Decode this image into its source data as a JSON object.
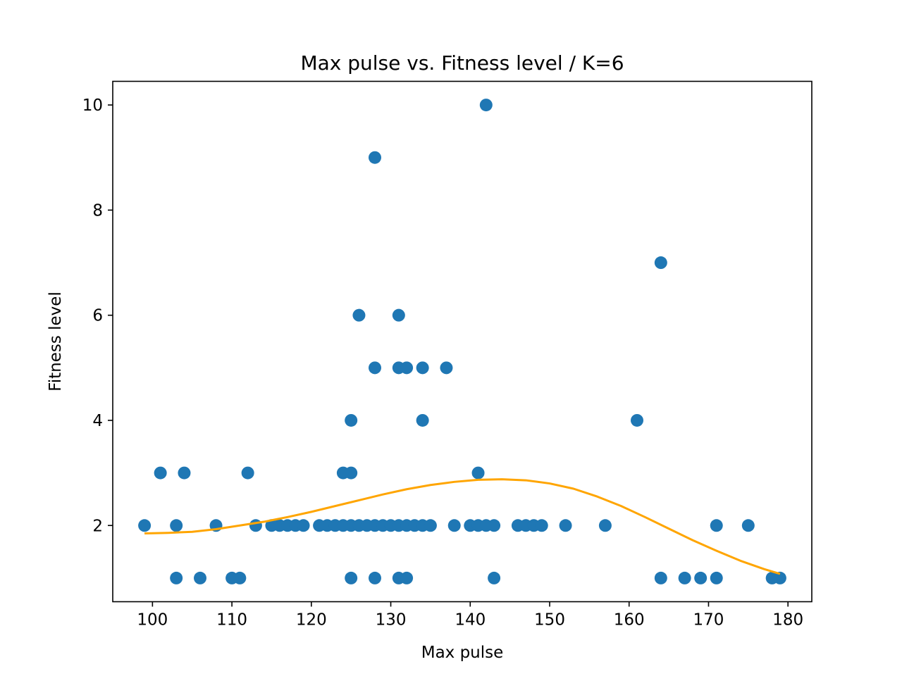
{
  "chart_data": {
    "type": "scatter",
    "title": "Max pulse vs. Fitness level / K=6",
    "xlabel": "Max pulse",
    "ylabel": "Fitness level",
    "xlim": [
      95,
      183
    ],
    "ylim": [
      0.55,
      10.45
    ],
    "xticks": [
      100,
      110,
      120,
      130,
      140,
      150,
      160,
      170,
      180
    ],
    "yticks": [
      2,
      4,
      6,
      8,
      10
    ],
    "grid": false,
    "legend": "none",
    "series": [
      {
        "kind": "scatter",
        "color": "#1f77b4",
        "points": [
          [
            142,
            10
          ],
          [
            128,
            9
          ],
          [
            164,
            7
          ],
          [
            126,
            6
          ],
          [
            131,
            6
          ],
          [
            128,
            5
          ],
          [
            131,
            5
          ],
          [
            132,
            5
          ],
          [
            134,
            5
          ],
          [
            137,
            5
          ],
          [
            125,
            4
          ],
          [
            134,
            4
          ],
          [
            161,
            4
          ],
          [
            101,
            3
          ],
          [
            104,
            3
          ],
          [
            112,
            3
          ],
          [
            124,
            3
          ],
          [
            125,
            3
          ],
          [
            141,
            3
          ],
          [
            99,
            2
          ],
          [
            103,
            2
          ],
          [
            108,
            2
          ],
          [
            113,
            2
          ],
          [
            115,
            2
          ],
          [
            116,
            2
          ],
          [
            117,
            2
          ],
          [
            118,
            2
          ],
          [
            119,
            2
          ],
          [
            121,
            2
          ],
          [
            122,
            2
          ],
          [
            123,
            2
          ],
          [
            124,
            2
          ],
          [
            125,
            2
          ],
          [
            126,
            2
          ],
          [
            127,
            2
          ],
          [
            128,
            2
          ],
          [
            129,
            2
          ],
          [
            130,
            2
          ],
          [
            131,
            2
          ],
          [
            132,
            2
          ],
          [
            133,
            2
          ],
          [
            134,
            2
          ],
          [
            135,
            2
          ],
          [
            138,
            2
          ],
          [
            140,
            2
          ],
          [
            141,
            2
          ],
          [
            142,
            2
          ],
          [
            143,
            2
          ],
          [
            146,
            2
          ],
          [
            147,
            2
          ],
          [
            148,
            2
          ],
          [
            149,
            2
          ],
          [
            152,
            2
          ],
          [
            157,
            2
          ],
          [
            171,
            2
          ],
          [
            175,
            2
          ],
          [
            103,
            1
          ],
          [
            106,
            1
          ],
          [
            110,
            1
          ],
          [
            111,
            1
          ],
          [
            125,
            1
          ],
          [
            128,
            1
          ],
          [
            131,
            1
          ],
          [
            132,
            1
          ],
          [
            143,
            1
          ],
          [
            164,
            1
          ],
          [
            167,
            1
          ],
          [
            169,
            1
          ],
          [
            171,
            1
          ],
          [
            178,
            1
          ],
          [
            179,
            1
          ]
        ]
      },
      {
        "kind": "line",
        "color": "#ffa500",
        "x": [
          99,
          102,
          105,
          108,
          111,
          114,
          117,
          120,
          123,
          126,
          129,
          132,
          135,
          138,
          141,
          144,
          147,
          150,
          153,
          156,
          159,
          162,
          165,
          168,
          171,
          174,
          177,
          179
        ],
        "y": [
          1.85,
          1.86,
          1.88,
          1.93,
          2.0,
          2.07,
          2.16,
          2.26,
          2.37,
          2.48,
          2.59,
          2.69,
          2.77,
          2.83,
          2.87,
          2.88,
          2.86,
          2.8,
          2.7,
          2.55,
          2.37,
          2.16,
          1.94,
          1.72,
          1.52,
          1.33,
          1.17,
          1.08
        ]
      }
    ]
  }
}
